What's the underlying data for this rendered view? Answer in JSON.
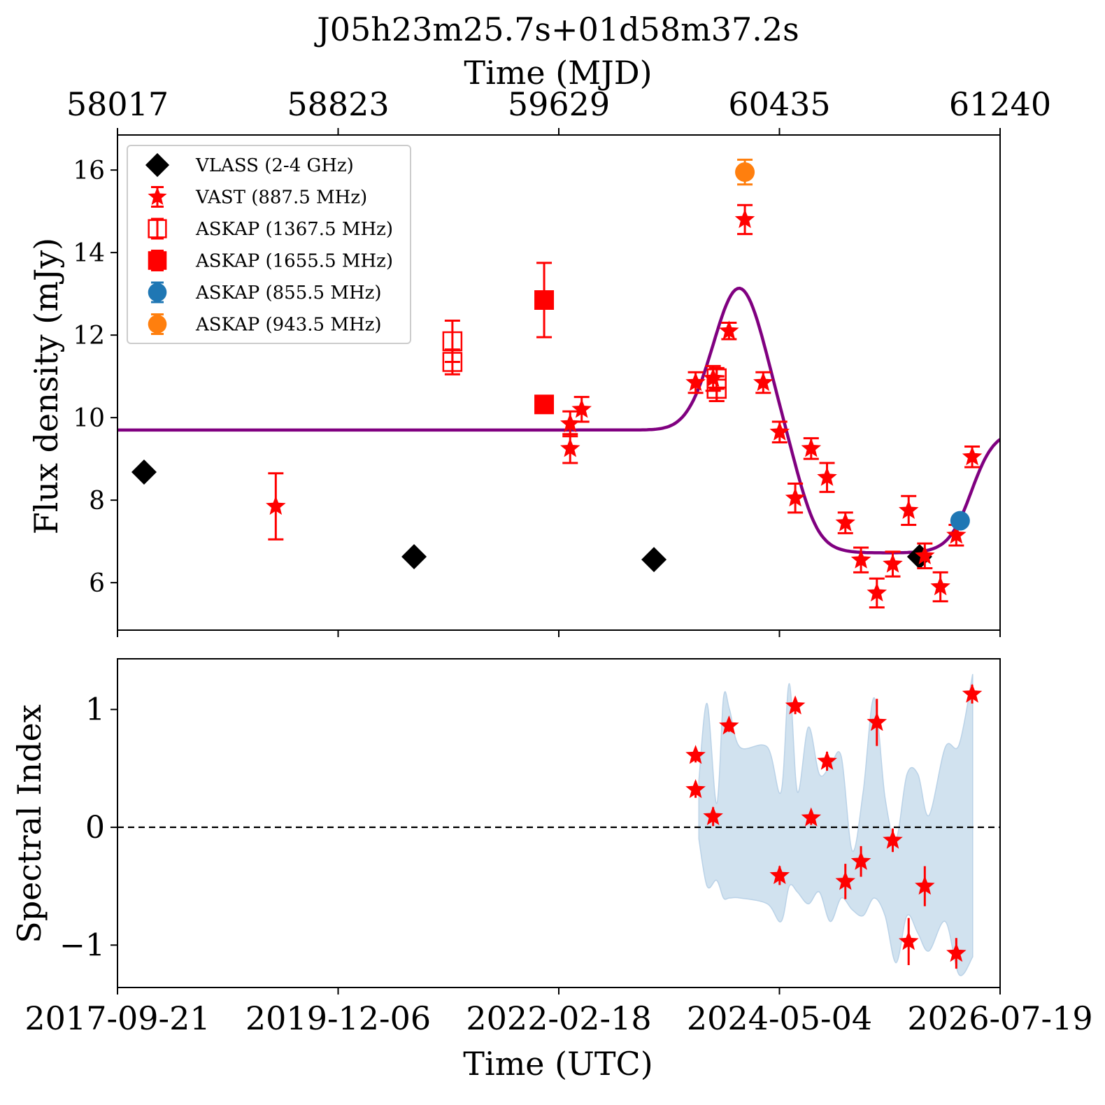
{
  "title": "J05h23m25.7s+01d58m37.2s",
  "axes": {
    "top_xlabel": "Time (MJD)",
    "top_ticks": [
      "58017",
      "58823",
      "59629",
      "60435",
      "61240"
    ],
    "bottom_xlabel": "Time (UTC)",
    "bottom_ticks": [
      "2017-09-21",
      "2019-12-06",
      "2022-02-18",
      "2024-05-04",
      "2026-07-19"
    ],
    "flux_ylabel": "Flux density (mJy)",
    "spec_ylabel": "Spectral Index",
    "flux_ticks": [
      "6",
      "8",
      "10",
      "12",
      "14",
      "16"
    ],
    "spec_ticks": [
      "−1",
      "0",
      "1"
    ]
  },
  "legend": {
    "items": [
      {
        "label": "VLASS (2-4 GHz)"
      },
      {
        "label": "VAST (887.5 MHz)"
      },
      {
        "label": "ASKAP (1367.5 MHz)"
      },
      {
        "label": "ASKAP (1655.5 MHz)"
      },
      {
        "label": "ASKAP (855.5 MHz)"
      },
      {
        "label": "ASKAP (943.5 MHz)"
      }
    ]
  },
  "chart_data": [
    {
      "type": "scatter",
      "panel": "flux",
      "x_units": "MJD",
      "xlim": [
        58017,
        61240
      ],
      "ylim": [
        4.85,
        16.85
      ],
      "grid": false,
      "legend_position": "top-left",
      "series": [
        {
          "name": "VLASS (2-4 GHz)",
          "marker": "diamond",
          "color": "#000000",
          "points": [
            [
              58114,
              8.68,
              0.1
            ],
            [
              59100,
              6.63,
              0.1
            ],
            [
              59976,
              6.56,
              0.1
            ],
            [
              60946,
              6.63,
              0.1
            ]
          ]
        },
        {
          "name": "VAST (887.5 MHz)",
          "marker": "star",
          "color": "#ff0000",
          "points": [
            [
              58595,
              7.85,
              0.8
            ],
            [
              59670,
              9.85,
              0.3
            ],
            [
              59670,
              9.25,
              0.35
            ],
            [
              59712,
              10.2,
              0.3
            ],
            [
              60128,
              10.85,
              0.25
            ],
            [
              60192,
              10.95,
              0.3
            ],
            [
              60250,
              12.1,
              0.2
            ],
            [
              60308,
              14.8,
              0.35
            ],
            [
              60375,
              10.85,
              0.25
            ],
            [
              60435,
              9.65,
              0.25
            ],
            [
              60492,
              8.05,
              0.35
            ],
            [
              60550,
              9.25,
              0.25
            ],
            [
              60608,
              8.55,
              0.35
            ],
            [
              60675,
              7.45,
              0.25
            ],
            [
              60732,
              6.55,
              0.3
            ],
            [
              60790,
              5.75,
              0.35
            ],
            [
              60848,
              6.45,
              0.3
            ],
            [
              60906,
              7.75,
              0.35
            ],
            [
              60965,
              6.65,
              0.3
            ],
            [
              61022,
              5.9,
              0.35
            ],
            [
              61080,
              7.15,
              0.25
            ],
            [
              61138,
              9.05,
              0.25
            ]
          ]
        },
        {
          "name": "ASKAP (1367.5 MHz)",
          "marker": "open-square",
          "color": "#ff0000",
          "points": [
            [
              59240,
              11.85,
              0.5
            ],
            [
              59240,
              11.35,
              0.3
            ],
            [
              60205,
              10.95,
              0.25
            ],
            [
              60205,
              10.7,
              0.3
            ],
            [
              60205,
              10.95,
              0.25
            ],
            [
              60205,
              10.7,
              0.3
            ]
          ]
        },
        {
          "name": "ASKAP (1655.5 MHz)",
          "marker": "filled-square",
          "color": "#ff0000",
          "points": [
            [
              59575,
              12.85,
              0.9
            ],
            [
              59575,
              10.32,
              0.2
            ]
          ]
        },
        {
          "name": "ASKAP (855.5 MHz)",
          "marker": "circle",
          "color": "#1f77b4",
          "points": [
            [
              61094,
              7.5,
              0.1
            ]
          ]
        },
        {
          "name": "ASKAP (943.5 MHz)",
          "marker": "circle",
          "color": "#ff7f0e",
          "points": [
            [
              60308,
              15.95,
              0.3
            ]
          ]
        }
      ],
      "model_curve": {
        "color": "#800080",
        "baseline": 9.7,
        "gaussian_amp": 3.45,
        "gaussian_center": 60288,
        "gaussian_sigma": 95,
        "dip_level": 6.72,
        "dip_start": 60510,
        "dip_end": 61135,
        "dip_width": 42
      }
    },
    {
      "type": "scatter",
      "panel": "spectral_index",
      "x_units": "MJD",
      "xlim": [
        58017,
        61240
      ],
      "ylim": [
        -1.36,
        1.43
      ],
      "reference_line": 0,
      "grid": false,
      "series": [
        {
          "name": "",
          "marker": "star",
          "color": "#ff0000",
          "points": [
            [
              60128,
              0.61,
              0.06
            ],
            [
              60128,
              0.32,
              0.07
            ],
            [
              60192,
              0.09,
              0.08
            ],
            [
              60250,
              0.86,
              0.05
            ],
            [
              60435,
              -0.41,
              0.08
            ],
            [
              60492,
              1.03,
              0.07
            ],
            [
              60550,
              0.08,
              0.06
            ],
            [
              60608,
              0.56,
              0.08
            ],
            [
              60675,
              -0.46,
              0.15
            ],
            [
              60732,
              -0.29,
              0.13
            ],
            [
              60790,
              0.89,
              0.2
            ],
            [
              60848,
              -0.11,
              0.1
            ],
            [
              60906,
              -0.97,
              0.2
            ],
            [
              60965,
              -0.5,
              0.17
            ],
            [
              61080,
              -1.07,
              0.13
            ],
            [
              61138,
              1.13,
              0.08
            ]
          ]
        }
      ],
      "uncertainty_band": {
        "color": "#cfe1ef",
        "x": [
          60140,
          60170,
          60205,
          60230,
          60252,
          60290,
          60390,
          60440,
          60470,
          60500,
          60540,
          60580,
          60620,
          60660,
          60700,
          60740,
          60780,
          60820,
          60860,
          60900,
          60940,
          60980,
          61040,
          61090,
          61140
        ],
        "upper": [
          0.4,
          1.05,
          0.2,
          1.1,
          1.0,
          0.68,
          0.68,
          0.3,
          1.22,
          0.3,
          0.85,
          0.45,
          0.52,
          0.6,
          -0.2,
          0.3,
          1.1,
          0.25,
          -0.1,
          0.45,
          0.45,
          0.1,
          0.68,
          0.7,
          1.3
        ],
        "lower": [
          -0.1,
          -0.5,
          -0.45,
          -0.6,
          -0.6,
          -0.6,
          -0.65,
          -0.8,
          -0.5,
          -0.55,
          -0.65,
          -0.55,
          -0.8,
          -0.6,
          -0.7,
          -0.75,
          -0.6,
          -0.75,
          -1.15,
          -0.75,
          -0.9,
          -1.05,
          -0.8,
          -1.25,
          -1.1
        ]
      }
    }
  ]
}
